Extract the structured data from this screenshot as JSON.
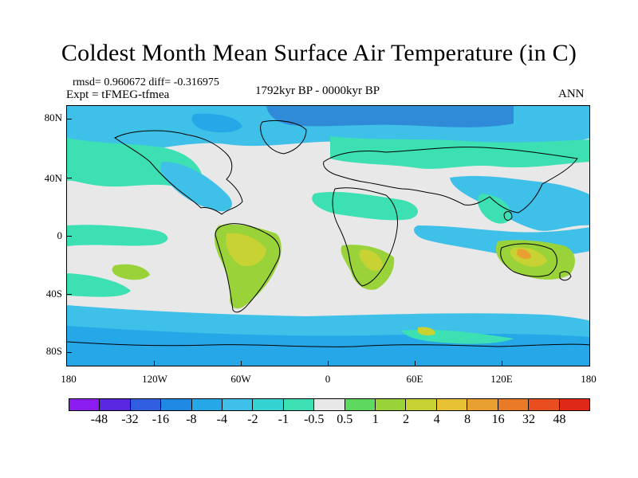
{
  "title": "Coldest Month Mean Surface Air Temperature (in C)",
  "stats": "rmsd= 0.960672  diff= -0.316975",
  "experiment": "Expt = tFMEG-tfmea",
  "period": "1792kyr BP - 0000kyr BP",
  "season": "ANN",
  "axes": {
    "x_labels": [
      "180",
      "120W",
      "60W",
      "0",
      "60E",
      "120E",
      "180"
    ],
    "y_labels": [
      "80N",
      "40N",
      "0",
      "40S",
      "80S"
    ]
  },
  "colorbar": {
    "labels": [
      "-48",
      "-32",
      "-16",
      "-8",
      "-4",
      "-2",
      "-1",
      "-0.5",
      "0.5",
      "1",
      "2",
      "4",
      "8",
      "16",
      "32",
      "48"
    ],
    "colors": [
      "#8a1cf0",
      "#5a28e0",
      "#2f5fe0",
      "#1f88e0",
      "#26a8e8",
      "#3fc0e8",
      "#35d2d2",
      "#3ce0b2",
      "#e8e8e8",
      "#5fd85f",
      "#9ad23a",
      "#c8d232",
      "#e8c232",
      "#e8a030",
      "#e87a28",
      "#e84e20",
      "#e02818"
    ]
  },
  "colors": {
    "background": "#e8e8e8",
    "coast": "#000000",
    "cool_deep": "#2f8ad8",
    "cool_mid": "#3fc0e8",
    "cool_light": "#3ce0b2",
    "warm_light": "#9ad23a",
    "warm_mid": "#c8d232",
    "warm_hot": "#e8a030"
  }
}
